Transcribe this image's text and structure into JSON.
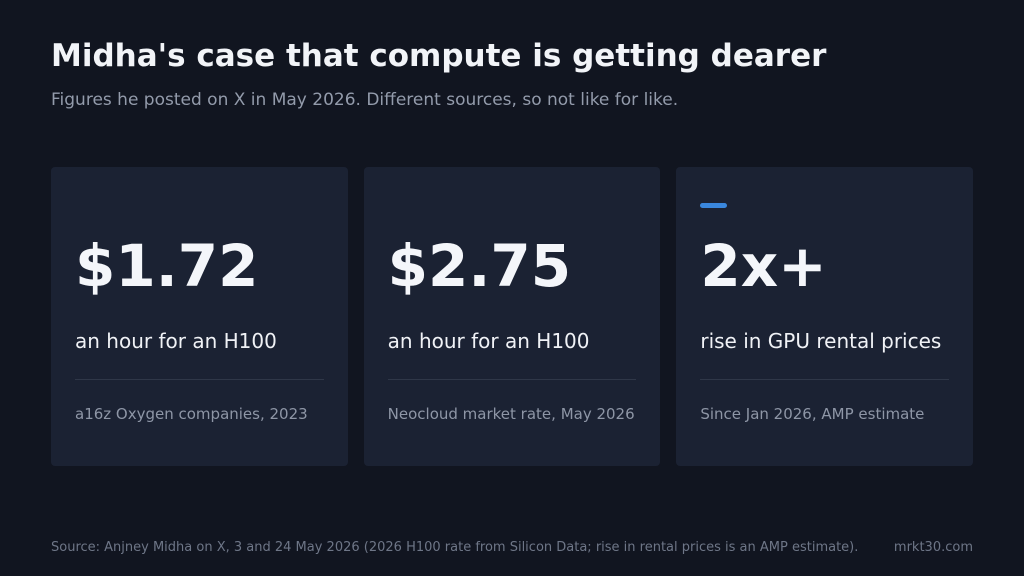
{
  "header": {
    "title": "Midha's case that compute is getting dearer",
    "subtitle": "Figures he posted on X in May 2026. Different sources, so not like for like."
  },
  "cards": [
    {
      "value": "$1.72",
      "description": "an hour for an H100",
      "note": "a16z Oxygen companies, 2023",
      "highlighted": false
    },
    {
      "value": "$2.75",
      "description": "an hour for an H100",
      "note": "Neocloud market rate, May 2026",
      "highlighted": false
    },
    {
      "value": "2x+",
      "description": "rise in GPU rental prices",
      "note": "Since Jan 2026, AMP estimate",
      "highlighted": true
    }
  ],
  "footer": {
    "source": "Source: Anjney Midha on X, 3 and 24 May 2026 (2026 H100 rate from Silicon Data; rise in rental prices is an AMP estimate).",
    "site": "mrkt30.com"
  },
  "colors": {
    "background": "#111520",
    "card": "#1b2233",
    "accent": "#3a87dd"
  }
}
